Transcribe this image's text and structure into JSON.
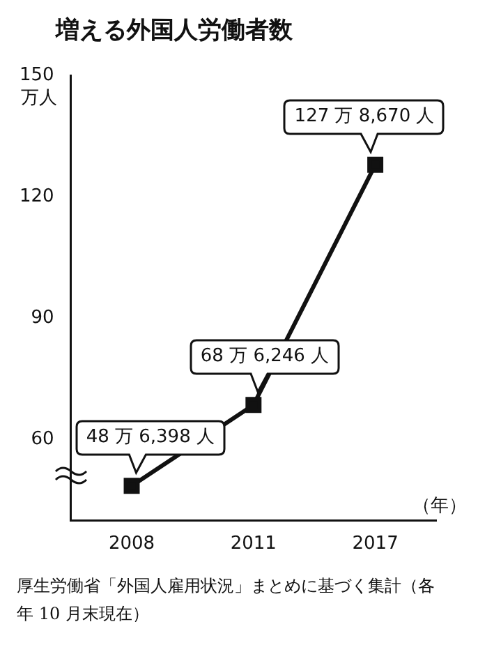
{
  "chart_data": {
    "type": "line",
    "title": "増える外国人労働者数",
    "ylabel": "万人",
    "xlabel": "（年）",
    "categories": [
      "2008",
      "2011",
      "2017"
    ],
    "series": [
      {
        "color": "#111111",
        "values": [
          48.6,
          68.6,
          127.9
        ]
      }
    ],
    "ylim": [
      40,
      150
    ],
    "yticks": [
      60,
      90,
      120,
      150
    ],
    "grid": false,
    "legend": false,
    "marker": "square",
    "line_style": "solid",
    "annotations": [
      {
        "text": "48 万 6,398 人",
        "x": "2008",
        "y": 48.6
      },
      {
        "text": "68 万 6,246 人",
        "x": "2011",
        "y": 68.6
      },
      {
        "text": "127 万 8,670 人",
        "x": "2017",
        "y": 127.9
      },
      "厚生労働省「外国人雇用状況」まとめに基づく集計（各年 10 月末現在）"
    ]
  }
}
